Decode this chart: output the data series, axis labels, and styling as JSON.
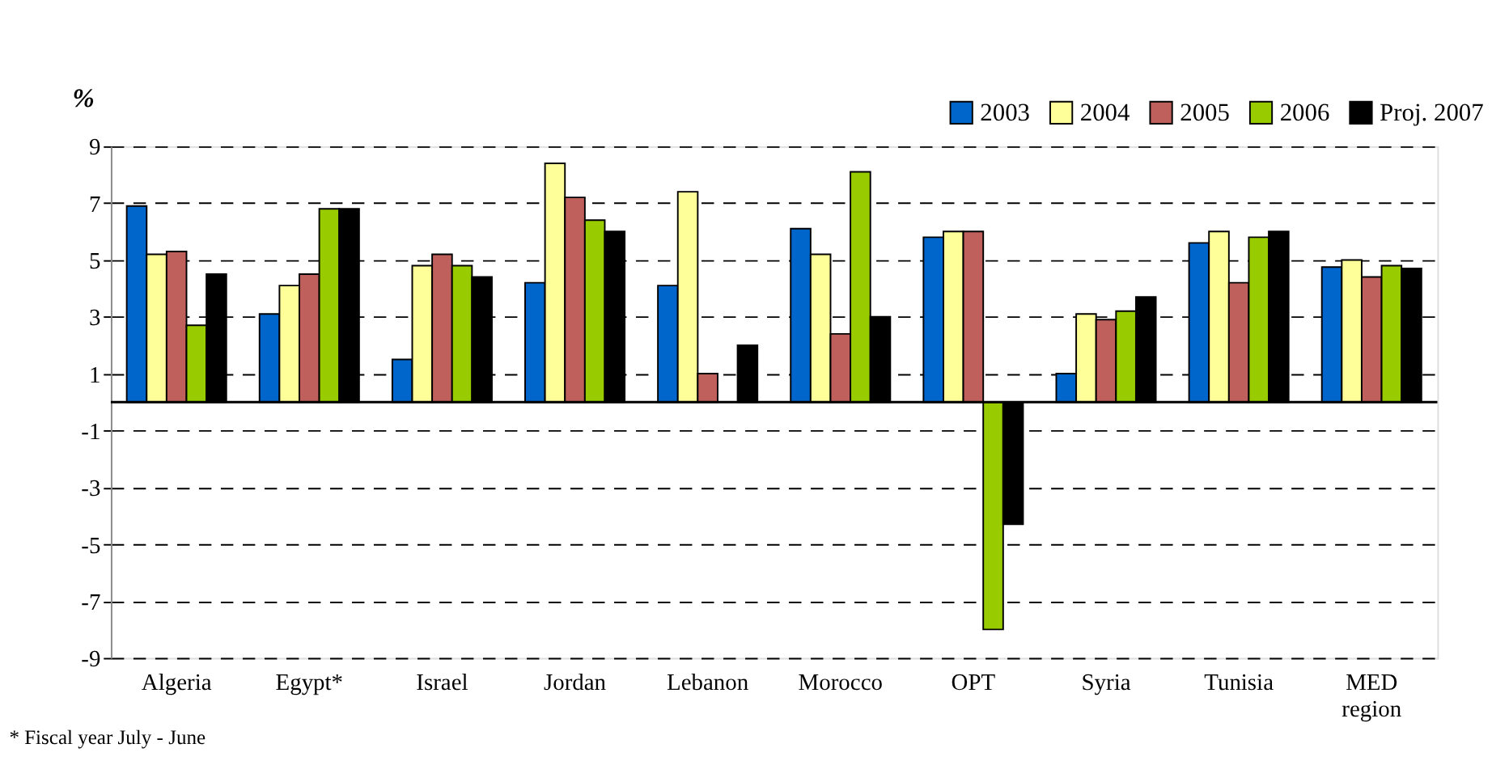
{
  "chart_data": {
    "type": "bar",
    "ylabel": "%",
    "categories": [
      "Algeria",
      "Egypt*",
      "Israel",
      "Jordan",
      "Lebanon",
      "Morocco",
      "OPT",
      "Syria",
      "Tunisia",
      "MED region"
    ],
    "series": [
      {
        "name": "2003",
        "color": "#0066cc",
        "values": [
          6.9,
          3.1,
          1.5,
          4.2,
          4.1,
          6.1,
          5.8,
          1.0,
          5.6,
          4.75
        ]
      },
      {
        "name": "2004",
        "color": "#ffff99",
        "values": [
          5.2,
          4.1,
          4.8,
          8.4,
          7.4,
          5.2,
          6.0,
          3.1,
          6.0,
          5.0
        ]
      },
      {
        "name": "2005",
        "color": "#c0605c",
        "values": [
          5.3,
          4.5,
          5.2,
          7.2,
          1.0,
          2.4,
          6.0,
          2.9,
          4.2,
          4.4
        ]
      },
      {
        "name": "2006",
        "color": "#99cc00",
        "values": [
          2.7,
          6.8,
          4.8,
          6.4,
          null,
          8.1,
          -8.0,
          3.2,
          5.8,
          4.8
        ]
      },
      {
        "name": "Proj. 2007",
        "color": "#000000",
        "values": [
          4.5,
          6.8,
          4.4,
          6.0,
          2.0,
          3.0,
          -4.3,
          3.7,
          6.0,
          4.7
        ]
      }
    ],
    "ylim": [
      -9,
      9
    ],
    "yticks": [
      -9,
      -7,
      -5,
      -3,
      -1,
      1,
      3,
      5,
      7,
      9
    ],
    "grid": "y",
    "legend": "top right",
    "annotations": [
      "* Fiscal year July - June"
    ]
  }
}
